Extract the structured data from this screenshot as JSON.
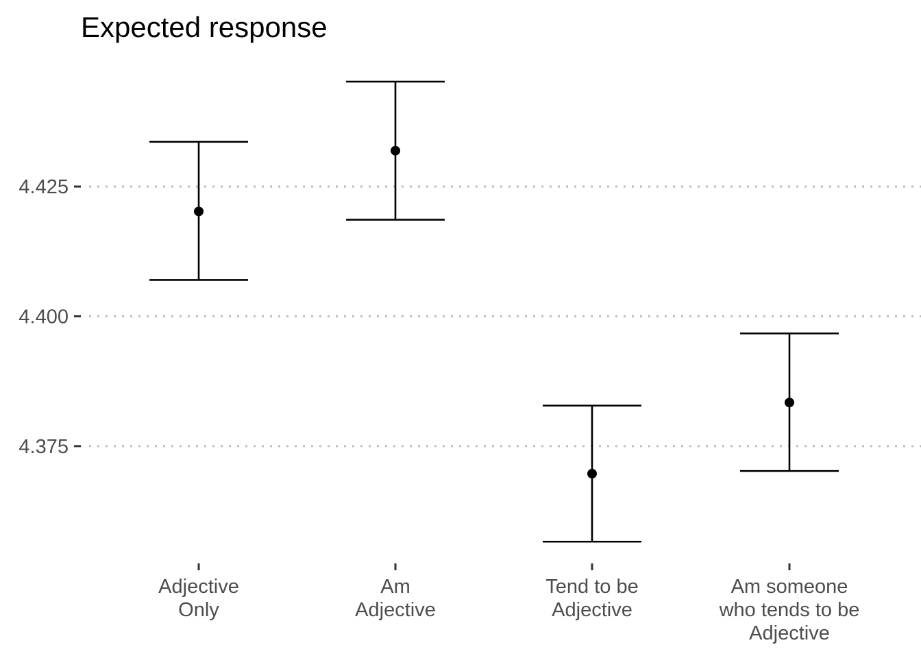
{
  "chart_data": {
    "type": "errorbar",
    "title": "Expected response",
    "xlabel": "",
    "ylabel": "",
    "categories": [
      [
        "Adjective",
        "Only"
      ],
      [
        "Am",
        "Adjective"
      ],
      [
        "Tend to be",
        "Adjective"
      ],
      [
        "Am someone",
        "who tends to be",
        "Adjective"
      ]
    ],
    "points": [
      {
        "estimate": 4.4202,
        "lower": 4.407,
        "upper": 4.4336
      },
      {
        "estimate": 4.4319,
        "lower": 4.4186,
        "upper": 4.4452
      },
      {
        "estimate": 4.3697,
        "lower": 4.3566,
        "upper": 4.3828
      },
      {
        "estimate": 4.3834,
        "lower": 4.3702,
        "upper": 4.3967
      }
    ],
    "yticks": [
      4.375,
      4.4,
      4.425
    ],
    "ytick_labels": [
      "4.375",
      "4.400",
      "4.425"
    ],
    "grid": "horizontal dotted",
    "legend": "none",
    "point_color": "#000000"
  }
}
